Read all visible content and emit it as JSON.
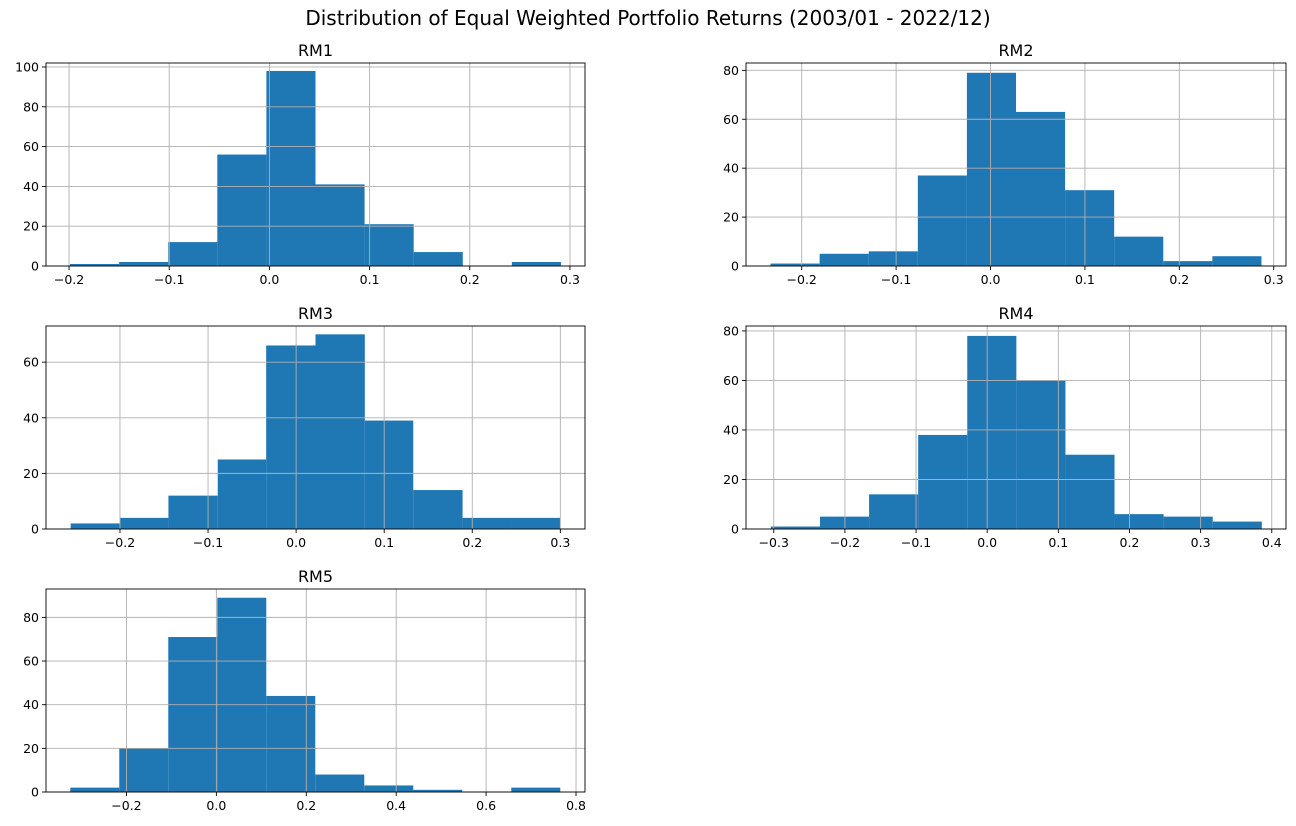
{
  "figure": {
    "suptitle": "Distribution of Equal Weighted Portfolio Returns (2003/01 - 2022/12)"
  },
  "colors": {
    "bar": "#1f77b4",
    "grid": "#b0b0b0",
    "axis": "#000000"
  },
  "chart_data": [
    {
      "type": "bar",
      "title": "RM1",
      "grid": true,
      "bin_edges": [
        -0.199,
        -0.15,
        -0.101,
        -0.052,
        -0.003,
        0.046,
        0.095,
        0.144,
        0.193,
        0.242,
        0.291
      ],
      "values": [
        1,
        2,
        12,
        56,
        98,
        41,
        21,
        7,
        0,
        2
      ],
      "xlim": [
        -0.223,
        0.315
      ],
      "ylim": [
        0,
        102
      ],
      "xticks": [
        -0.2,
        -0.1,
        0.0,
        0.1,
        0.2,
        0.3
      ],
      "xtick_labels": [
        "−0.2",
        "−0.1",
        "0.0",
        "0.1",
        "0.2",
        "0.3"
      ],
      "yticks": [
        0,
        20,
        40,
        60,
        80,
        100
      ],
      "ytick_labels": [
        "0",
        "20",
        "40",
        "60",
        "80",
        "100"
      ]
    },
    {
      "type": "bar",
      "title": "RM2",
      "grid": true,
      "bin_edges": [
        -0.233,
        -0.181,
        -0.129,
        -0.077,
        -0.025,
        0.027,
        0.079,
        0.131,
        0.183,
        0.235,
        0.287
      ],
      "values": [
        1,
        5,
        6,
        37,
        79,
        63,
        31,
        12,
        2,
        4
      ],
      "xlim": [
        -0.259,
        0.313
      ],
      "ylim": [
        0,
        83
      ],
      "xticks": [
        -0.2,
        -0.1,
        0.0,
        0.1,
        0.2,
        0.3
      ],
      "xtick_labels": [
        "−0.2",
        "−0.1",
        "0.0",
        "0.1",
        "0.2",
        "0.3"
      ],
      "yticks": [
        0,
        20,
        40,
        60,
        80
      ],
      "ytick_labels": [
        "0",
        "20",
        "40",
        "60",
        "80"
      ]
    },
    {
      "type": "bar",
      "title": "RM3",
      "grid": true,
      "bin_edges": [
        -0.256,
        -0.2,
        -0.145,
        -0.089,
        -0.034,
        0.022,
        0.078,
        0.133,
        0.189,
        0.244,
        0.3
      ],
      "values": [
        2,
        4,
        12,
        25,
        66,
        70,
        39,
        14,
        4,
        4
      ],
      "xlim": [
        -0.284,
        0.328
      ],
      "ylim": [
        0,
        73
      ],
      "xticks": [
        -0.2,
        -0.1,
        0.0,
        0.1,
        0.2,
        0.3
      ],
      "xtick_labels": [
        "−0.2",
        "−0.1",
        "0.0",
        "0.1",
        "0.2",
        "0.3"
      ],
      "yticks": [
        0,
        20,
        40,
        60
      ],
      "ytick_labels": [
        "0",
        "20",
        "40",
        "60"
      ]
    },
    {
      "type": "bar",
      "title": "RM4",
      "grid": true,
      "bin_edges": [
        -0.304,
        -0.235,
        -0.166,
        -0.097,
        -0.028,
        0.041,
        0.11,
        0.179,
        0.248,
        0.317,
        0.386
      ],
      "values": [
        1,
        5,
        14,
        38,
        78,
        60,
        30,
        6,
        5,
        3
      ],
      "xlim": [
        -0.339,
        0.42
      ],
      "ylim": [
        0,
        82
      ],
      "xticks": [
        -0.3,
        -0.2,
        -0.1,
        0.0,
        0.1,
        0.2,
        0.3,
        0.4
      ],
      "xtick_labels": [
        "−0.3",
        "−0.2",
        "−0.1",
        "0.0",
        "0.1",
        "0.2",
        "0.3",
        "0.4"
      ],
      "yticks": [
        0,
        20,
        40,
        60,
        80
      ],
      "ytick_labels": [
        "0",
        "20",
        "40",
        "60",
        "80"
      ]
    },
    {
      "type": "bar",
      "title": "RM5",
      "grid": true,
      "bin_edges": [
        -0.325,
        -0.216,
        -0.107,
        0.002,
        0.111,
        0.22,
        0.329,
        0.438,
        0.547,
        0.656,
        0.765
      ],
      "values": [
        2,
        20,
        71,
        89,
        44,
        8,
        3,
        1,
        0,
        2
      ],
      "xlim": [
        -0.379,
        0.82
      ],
      "ylim": [
        0,
        93
      ],
      "xticks": [
        -0.2,
        0.0,
        0.2,
        0.4,
        0.6,
        0.8
      ],
      "xtick_labels": [
        "−0.2",
        "0.0",
        "0.2",
        "0.4",
        "0.6",
        "0.8"
      ],
      "yticks": [
        0,
        20,
        40,
        60,
        80
      ],
      "ytick_labels": [
        "0",
        "20",
        "40",
        "60",
        "80"
      ]
    }
  ]
}
